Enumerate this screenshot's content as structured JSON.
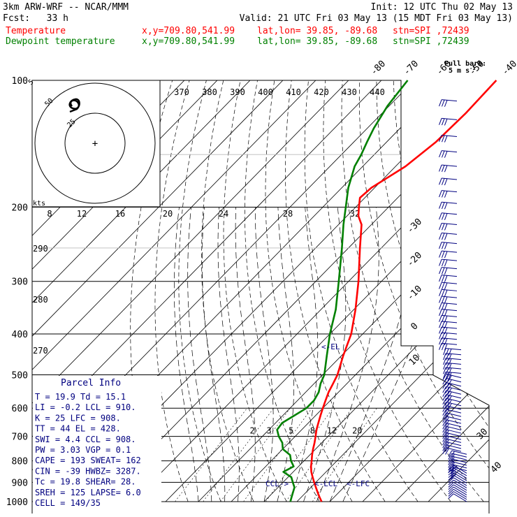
{
  "header": {
    "title": "3km ARW-WRF -- NCAR/MMM",
    "init": "Init: 12 UTC Thu 02 May 13",
    "fcst": "Fcst:   33 h",
    "valid": "Valid: 21 UTC Fri 03 May 13 (15 MDT Fri 03 May 13)",
    "temperature_line": {
      "label": "Temperature",
      "xy": "x,y=709.80,541.99",
      "latlon": "lat,lon= 39.85, -89.68",
      "stn": "stn=SPI ,72439"
    },
    "dewpoint_line": {
      "label": "Dewpoint temperature",
      "xy": "x,y=709.80,541.99",
      "latlon": "lat,lon= 39.85, -89.68",
      "stn": "stn=SPI ,72439"
    }
  },
  "barb_legend": {
    "line1": "Full barb:",
    "line2": "5 m s",
    "sup": "-1"
  },
  "hodograph": {
    "ring_labels": [
      "5",
      "25",
      "50"
    ],
    "speed_axis_label": "kts",
    "speed_ticks": [
      "8",
      "12",
      "16",
      "20",
      "24",
      "28",
      "32"
    ]
  },
  "parcel_info": {
    "title": "Parcel Info",
    "rows": [
      "T  =    19.9 Td =  15.1",
      "LI =    -0.2 LCL =  910.",
      "K  =      25 LFC =  908.",
      "TT =      44 EL  =  428.",
      "SWI =    4.4 CCL =  908.",
      "PW =   3.03 VGP =   0.1",
      "CAPE =   193 SWEAT=  162",
      "CIN =    -39 HWBZ= 3287.",
      "Tc =    19.8 SHEAR=  28.",
      "SREH =   125 LAPSE=  6.0",
      "CELL = 149/35"
    ]
  },
  "level_labels": {
    "el": "EL",
    "lcl": "LCL",
    "lfc": "LFC",
    "ccl": "CCL"
  },
  "colors": {
    "temperature": "#ff0000",
    "dewpoint": "#008000",
    "axes": "#000000",
    "grid": "#000000",
    "text_blue": "#000080",
    "barbs": "#000080"
  },
  "chart_data": {
    "type": "line",
    "subtype": "skew-T log-P diagram",
    "y_axis": {
      "scale": "log",
      "ylim": [
        1000,
        100
      ],
      "ticks": [
        100,
        200,
        300,
        400,
        500,
        600,
        700,
        800,
        900,
        1000
      ],
      "units": "hPa"
    },
    "isotherm_labels": [
      -80,
      -70,
      -60,
      -50,
      -40,
      -30,
      -20,
      -10,
      0,
      10,
      30,
      40
    ],
    "theta_labels": [
      370,
      380,
      390,
      400,
      410,
      420,
      430,
      440
    ],
    "dry_adiabat_labels": [
      290,
      280,
      270
    ],
    "mixing_ratio_labels": [
      2,
      3,
      5,
      8,
      12,
      20
    ],
    "series": [
      {
        "name": "Temperature",
        "color": "#ff0000",
        "points": [
          [
            1000,
            27.5
          ],
          [
            975,
            25.5
          ],
          [
            950,
            23.5
          ],
          [
            925,
            21.5
          ],
          [
            900,
            19.5
          ],
          [
            875,
            17.5
          ],
          [
            850,
            15.5
          ],
          [
            825,
            13.8
          ],
          [
            800,
            12.3
          ],
          [
            775,
            10.7
          ],
          [
            750,
            9.2
          ],
          [
            725,
            7.8
          ],
          [
            700,
            6.2
          ],
          [
            675,
            4.5
          ],
          [
            650,
            3.0
          ],
          [
            625,
            1.5
          ],
          [
            600,
            0.0
          ],
          [
            575,
            -1.5
          ],
          [
            550,
            -3.0
          ],
          [
            525,
            -4.2
          ],
          [
            500,
            -5.5
          ],
          [
            450,
            -9.5
          ],
          [
            400,
            -13.5
          ],
          [
            350,
            -19.5
          ],
          [
            300,
            -27
          ],
          [
            250,
            -36.5
          ],
          [
            220,
            -43
          ],
          [
            210,
            -46.5
          ],
          [
            200,
            -49
          ],
          [
            190,
            -51.5
          ],
          [
            180,
            -51
          ],
          [
            160,
            -47
          ],
          [
            140,
            -45
          ],
          [
            120,
            -44.5
          ],
          [
            100,
            -45
          ]
        ]
      },
      {
        "name": "Dewpoint temperature",
        "color": "#008000",
        "points": [
          [
            1000,
            18.0
          ],
          [
            975,
            17.0
          ],
          [
            950,
            16.0
          ],
          [
            925,
            15.0
          ],
          [
            900,
            13.0
          ],
          [
            875,
            11.0
          ],
          [
            850,
            7.0
          ],
          [
            825,
            8.5
          ],
          [
            800,
            6.0
          ],
          [
            775,
            4.0
          ],
          [
            750,
            0.0
          ],
          [
            725,
            -2.0
          ],
          [
            700,
            -5.0
          ],
          [
            675,
            -7.5
          ],
          [
            650,
            -8.0
          ],
          [
            625,
            -6.5
          ],
          [
            600,
            -5.0
          ],
          [
            575,
            -5.0
          ],
          [
            550,
            -6.0
          ],
          [
            525,
            -8.0
          ],
          [
            500,
            -9.5
          ],
          [
            450,
            -14.5
          ],
          [
            400,
            -20.0
          ],
          [
            350,
            -25.5
          ],
          [
            300,
            -33
          ],
          [
            250,
            -42
          ],
          [
            220,
            -48.5
          ],
          [
            200,
            -53
          ],
          [
            180,
            -58
          ],
          [
            160,
            -62.5
          ],
          [
            150,
            -64
          ],
          [
            140,
            -66
          ],
          [
            130,
            -68
          ],
          [
            115,
            -70.5
          ],
          [
            100,
            -72
          ]
        ]
      }
    ]
  }
}
